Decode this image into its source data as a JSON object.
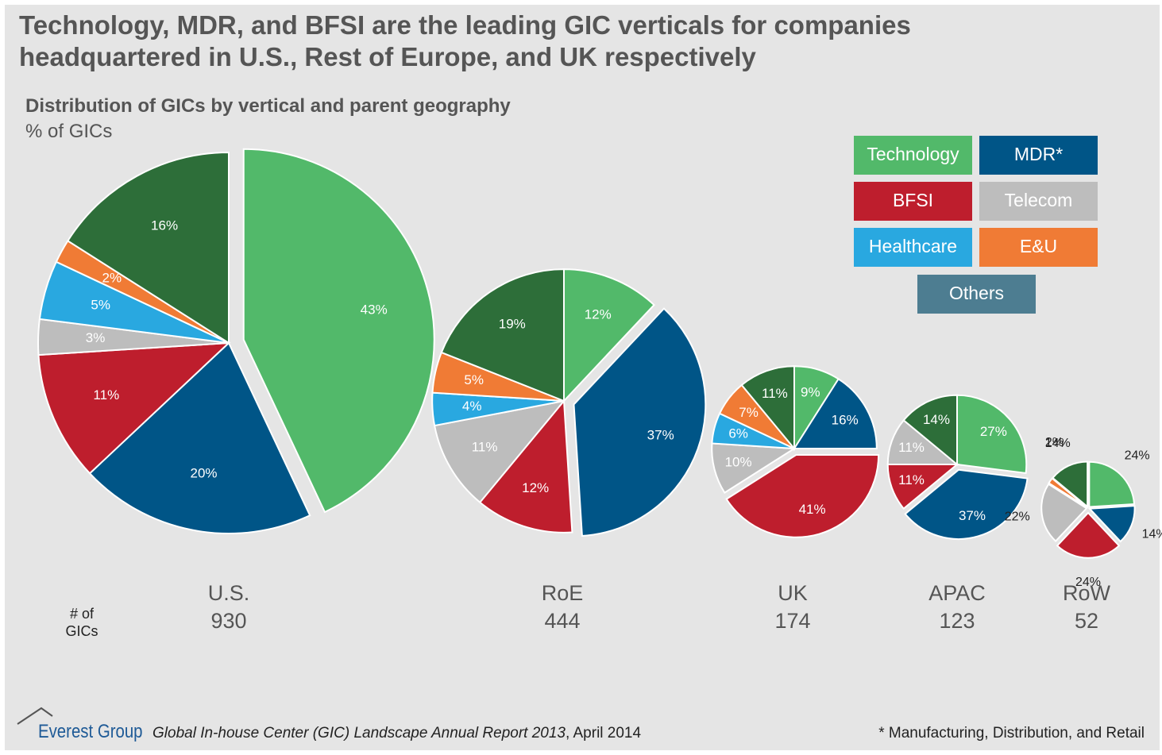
{
  "title": "Technology, MDR, and BFSI are the leading GIC verticals for companies headquartered in U.S., Rest of Europe, and UK respectively",
  "subtitle": "Distribution of GICs by vertical and parent geography",
  "units": "% of GICs",
  "count_label": "# of GICs",
  "footer": {
    "brand": "Everest Group",
    "source": "Global In-house Center (GIC) Landscape Annual Report 2013",
    "date": ", April 2014",
    "footnote": "* Manufacturing, Distribution, and Retail"
  },
  "chart_data": {
    "type": "pie",
    "categories": [
      "Technology",
      "MDR*",
      "BFSI",
      "Telecom",
      "Healthcare",
      "E&U",
      "Others"
    ],
    "colors": [
      "#52b96a",
      "#005587",
      "#be1e2d",
      "#bdbdbd",
      "#29a8e0",
      "#f07b35",
      "#2d6e39"
    ],
    "legend_colors": [
      "#52b96a",
      "#005587",
      "#be1e2d",
      "#bdbdbd",
      "#29a8e0",
      "#f07b35",
      "#4d7d91"
    ],
    "pies": [
      {
        "name": "U.S.",
        "count": 930,
        "explode": 0,
        "values": [
          43,
          20,
          11,
          3,
          5,
          2,
          16
        ],
        "value_labels": [
          "43%",
          "20%",
          "11%",
          "3%",
          "5%",
          "2%",
          "16%"
        ]
      },
      {
        "name": "RoE",
        "count": 444,
        "explode": 1,
        "values": [
          12,
          37,
          12,
          11,
          4,
          5,
          19
        ],
        "value_labels": [
          "12%",
          "37%",
          "12%",
          "11%",
          "4%",
          "5%",
          "19%"
        ]
      },
      {
        "name": "UK",
        "count": 174,
        "explode": 2,
        "values": [
          9,
          16,
          41,
          10,
          6,
          7,
          11
        ],
        "value_labels": [
          "9%",
          "16%",
          "41%",
          "10%",
          "6%",
          "7%",
          "11%"
        ]
      },
      {
        "name": "APAC",
        "count": 123,
        "explode": 1,
        "values": [
          27,
          37,
          11,
          11,
          null,
          null,
          14
        ],
        "value_labels": [
          "27%",
          "37%",
          "11%",
          "11%",
          null,
          null,
          "14%"
        ]
      },
      {
        "name": "RoW",
        "count": 52,
        "explode": 2,
        "values": [
          24,
          14,
          24,
          22,
          null,
          2,
          14
        ],
        "value_labels": [
          "24%",
          "14%",
          "24%",
          "22%",
          null,
          "2%",
          "14%"
        ]
      }
    ]
  }
}
